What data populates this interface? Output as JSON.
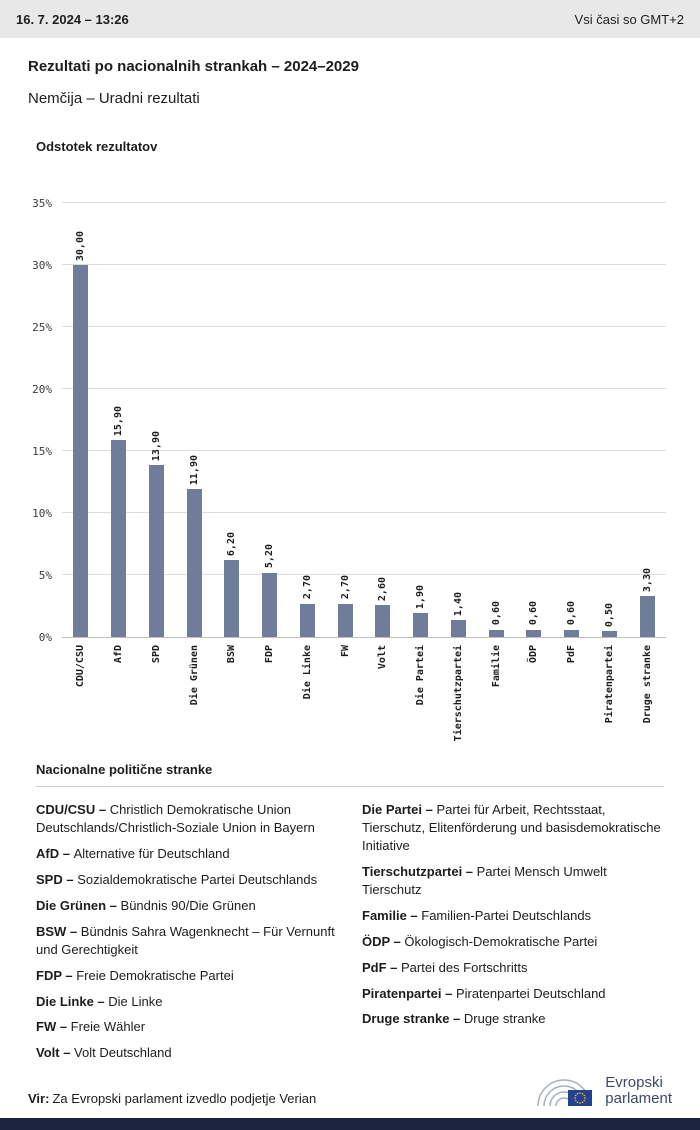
{
  "header": {
    "datetime": "16. 7. 2024 – 13:26",
    "timezone_note": "Vsi časi so GMT+2"
  },
  "title": "Rezultati po nacionalnih strankah – 2024–2029",
  "subtitle": "Nemčija – Uradni rezultati",
  "chart_data": {
    "type": "bar",
    "title": "Odstotek rezultatov",
    "categories": [
      "CDU/CSU",
      "AfD",
      "SPD",
      "Die Grünen",
      "BSW",
      "FDP",
      "Die Linke",
      "FW",
      "Volt",
      "Die Partei",
      "Tierschutzpartei",
      "Familie",
      "ÖDP",
      "PdF",
      "Piratenpartei",
      "Druge stranke"
    ],
    "values": [
      30.0,
      15.9,
      13.9,
      11.9,
      6.2,
      5.2,
      2.7,
      2.7,
      2.6,
      1.9,
      1.4,
      0.6,
      0.6,
      0.6,
      0.5,
      3.3
    ],
    "value_labels": [
      "30,00",
      "15,90",
      "13,90",
      "11,90",
      "6,20",
      "5,20",
      "2,70",
      "2,70",
      "2,60",
      "1,90",
      "1,40",
      "0,60",
      "0,60",
      "0,60",
      "0,50",
      "3,30"
    ],
    "xlabel": "",
    "ylabel": "",
    "ylim": [
      0,
      35
    ],
    "yticks": [
      "0%",
      "5%",
      "10%",
      "15%",
      "20%",
      "25%",
      "30%",
      "35%"
    ],
    "grid": true,
    "legend_position": "none",
    "bar_color": "#6f7d9b"
  },
  "legend": {
    "heading": "Nacionalne politične stranke",
    "columns": [
      [
        {
          "abbr": "CDU/CSU",
          "desc": "Christlich Demokratische Union Deutschlands/Christlich-Soziale Union in Bayern"
        },
        {
          "abbr": "AfD",
          "desc": "Alternative für Deutschland"
        },
        {
          "abbr": "SPD",
          "desc": "Sozialdemokratische Partei Deutschlands"
        },
        {
          "abbr": "Die Grünen",
          "desc": "Bündnis 90/Die Grünen"
        },
        {
          "abbr": "BSW",
          "desc": "Bündnis Sahra Wagenknecht – Für Vernunft und Gerechtigkeit"
        },
        {
          "abbr": "FDP",
          "desc": "Freie Demokratische Partei"
        },
        {
          "abbr": "Die Linke",
          "desc": "Die Linke"
        },
        {
          "abbr": "FW",
          "desc": "Freie Wähler"
        },
        {
          "abbr": "Volt",
          "desc": "Volt Deutschland"
        }
      ],
      [
        {
          "abbr": "Die Partei",
          "desc": "Partei für Arbeit, Rechtsstaat, Tierschutz, Elitenförderung und basisdemokratische Initiative"
        },
        {
          "abbr": "Tierschutzpartei",
          "desc": "Partei Mensch Umwelt Tierschutz"
        },
        {
          "abbr": "Familie",
          "desc": "Familien-Partei Deutschlands"
        },
        {
          "abbr": "ÖDP",
          "desc": "Ökologisch-Demokratische Partei"
        },
        {
          "abbr": "PdF",
          "desc": "Partei des Fortschritts"
        },
        {
          "abbr": "Piratenpartei",
          "desc": "Piratenpartei Deutschland"
        },
        {
          "abbr": "Druge stranke",
          "desc": "Druge stranke"
        }
      ]
    ]
  },
  "footer": {
    "source_label": "Vir:",
    "source_text": "Za Evropski parlament izvedlo podjetje Verian",
    "logo_line1": "Evropski",
    "logo_line2": "parlament"
  },
  "colors": {
    "bar": "#6f7d9b",
    "header_background": "#e8e8e8",
    "bottom_bar": "#1b2540",
    "eu_flag_blue": "#24408f",
    "eu_star_gold": "#ffcc00",
    "logo_text": "#3d4a66"
  }
}
